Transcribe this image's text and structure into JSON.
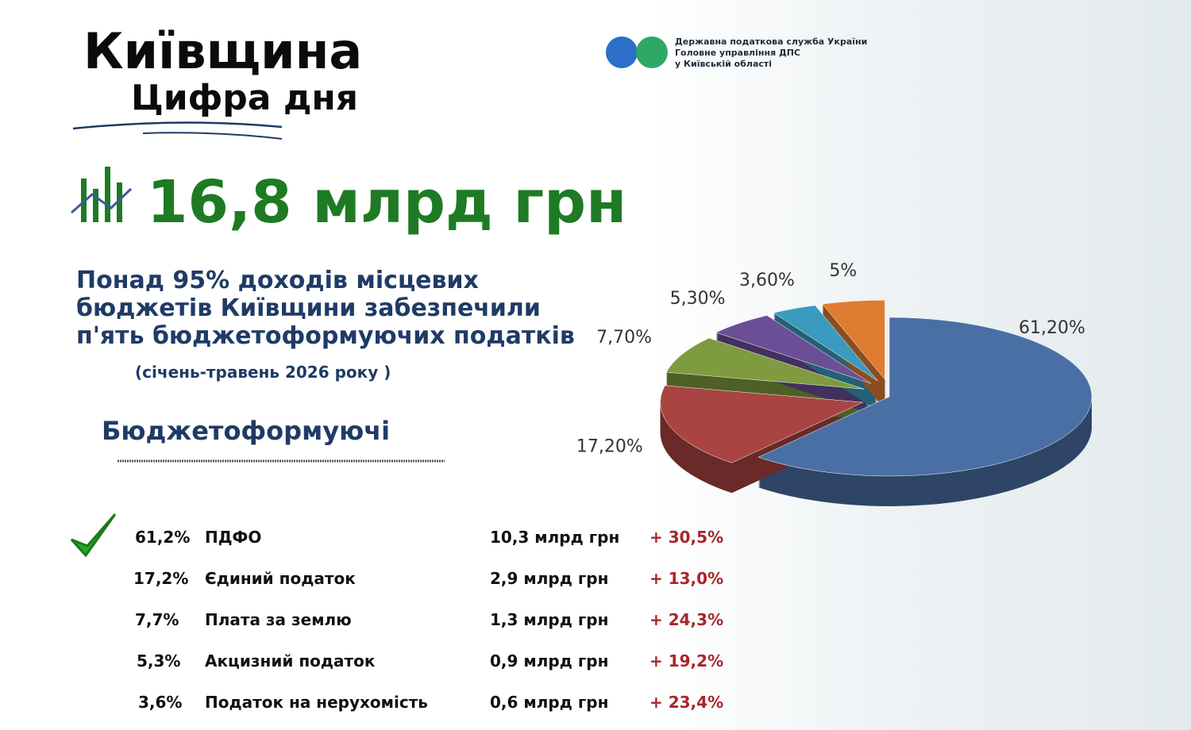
{
  "header": {
    "title": "Київщина",
    "subtitle": "Цифра дня",
    "logo": [
      "Державна податкова служба України",
      "Головне управління ДПС",
      "у Київській області"
    ]
  },
  "headline": "16,8 млрд грн",
  "description": [
    "Понад 95% доходів місцевих",
    "бюджетів Київщини забезпечили",
    "п'ять бюджетоформуючих податків"
  ],
  "period": "(січень-травень 2026 року )",
  "section": "Бюджетоформуючі",
  "table": {
    "rows": [
      [
        "61,2%",
        "ПДФО",
        "10,3 млрд грн",
        "+ 30,5%"
      ],
      [
        "17,2%",
        "Єдиний податок",
        "2,9 млрд грн",
        "+ 13,0%"
      ],
      [
        "7,7%",
        "Плата за землю",
        "1,3 млрд грн",
        "+ 24,3%"
      ],
      [
        "5,3%",
        "Акцизний податок",
        "0,9 млрд грн",
        "+ 19,2%"
      ],
      [
        "3,6%",
        "Податок на нерухомість",
        "0,6 млрд грн",
        "+ 23,4%"
      ]
    ]
  },
  "chart_data": {
    "type": "pie",
    "values": [
      61.2,
      17.2,
      7.7,
      5.3,
      3.6,
      5
    ],
    "value_labels": [
      "61,20%",
      "17,20%",
      "7,70%",
      "5,30%",
      "3,60%",
      "5%"
    ],
    "colors": [
      "#4a6fa5",
      "#a94442",
      "#7f9b3f",
      "#6b4f96",
      "#3a9bbf",
      "#e07c32"
    ]
  }
}
